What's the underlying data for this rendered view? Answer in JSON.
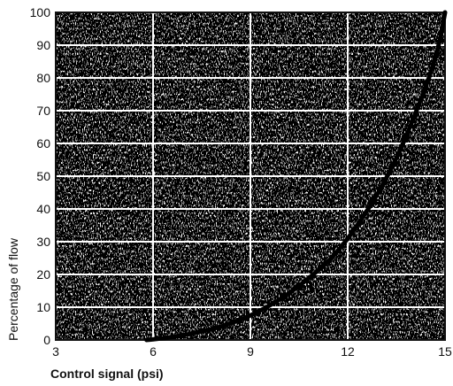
{
  "chart_data": {
    "type": "line",
    "title": "",
    "xlabel": "Control signal (psi)",
    "ylabel": "Percentage of flow",
    "xlim": [
      3,
      15
    ],
    "ylim": [
      0,
      100
    ],
    "x_ticks": [
      "3",
      "6",
      "9",
      "12",
      "15"
    ],
    "y_ticks": [
      "0",
      "10",
      "20",
      "30",
      "40",
      "50",
      "60",
      "70",
      "80",
      "90",
      "100"
    ],
    "grid": true,
    "legend": "none",
    "series": [
      {
        "name": "",
        "x": [
          5.8,
          6,
          6.5,
          7,
          7.5,
          8,
          8.5,
          9,
          9.5,
          10,
          10.5,
          11,
          11.5,
          12,
          12.5,
          13,
          13.5,
          14,
          14.5,
          14.8,
          15
        ],
        "y": [
          0,
          0.2,
          0.8,
          1.6,
          2.6,
          3.8,
          5.5,
          7.5,
          10,
          13,
          16.5,
          20.5,
          25,
          31,
          38,
          46,
          55.5,
          67,
          80,
          90,
          100
        ]
      }
    ],
    "colors": {
      "line": "#000000",
      "grid": "#ffffff",
      "background": "#3a3a3a"
    }
  }
}
